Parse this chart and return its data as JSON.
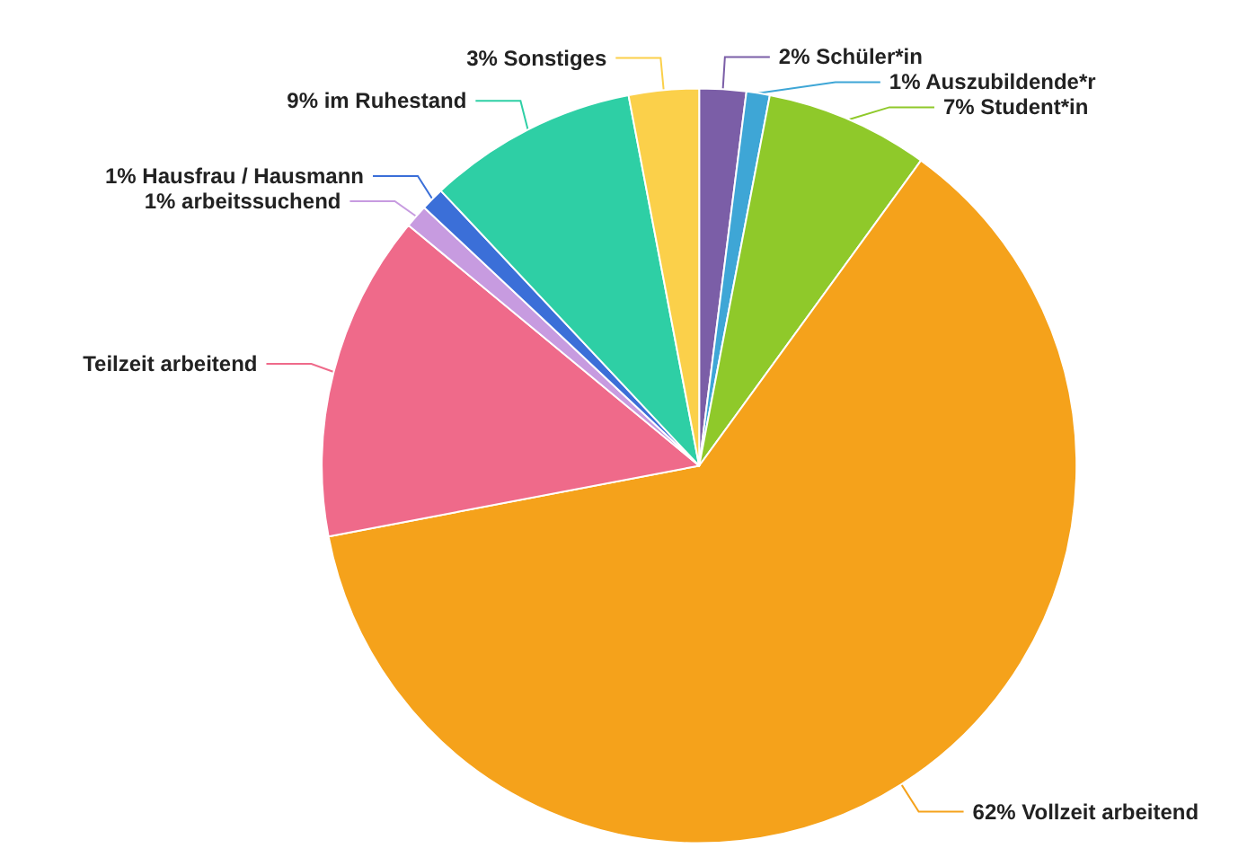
{
  "chart_data": {
    "type": "pie",
    "categories": [
      "Schüler*in",
      "Auszubildende*r",
      "Student*in",
      "Vollzeit arbeitend",
      "Teilzeit arbeitend",
      "arbeitssuchend",
      "Hausfrau / Hausmann",
      "im Ruhestand",
      "Sonstiges"
    ],
    "values": [
      2,
      1,
      7,
      62,
      14,
      1,
      1,
      9,
      3
    ],
    "value_labels": [
      "2%",
      "1%",
      "7%",
      "62%",
      null,
      "1%",
      "1%",
      "9%",
      "3%"
    ],
    "colors": [
      "#7b5ea7",
      "#3ea6d6",
      "#8fc92a",
      "#f5a21b",
      "#ef6a8a",
      "#c79be0",
      "#3b6fd8",
      "#2ecfa5",
      "#fbd04a"
    ],
    "legend": false
  }
}
